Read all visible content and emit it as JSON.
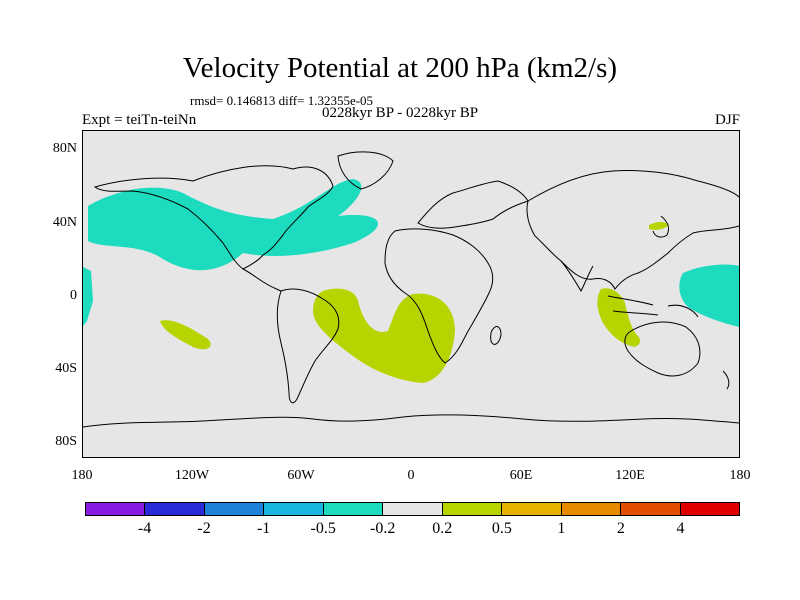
{
  "title": "Velocity Potential at 200 hPa (km2/s)",
  "stats": "rmsd= 0.146813 diff= 1.32355e-05",
  "expt": "Expt = teiTn-teiNn",
  "period": "0228kyr BP - 0228kyr BP",
  "season": "DJF",
  "axes": {
    "y_labels": [
      "80N",
      "40N",
      "0",
      "40S",
      "80S"
    ],
    "x_labels": [
      "180",
      "120W",
      "60W",
      "0",
      "60E",
      "120E",
      "180"
    ]
  },
  "colorbar": {
    "colors": [
      "#8a1be0",
      "#2a2ad8",
      "#1e82d9",
      "#19b7e0",
      "#1ddbbf",
      "#e6e6e6",
      "#b8d400",
      "#e6b100",
      "#e68a00",
      "#e24e00",
      "#e00000"
    ],
    "labels": [
      "-4",
      "-2",
      "-1",
      "-0.5",
      "-0.2",
      "0.2",
      "0.5",
      "1",
      "2",
      "4"
    ]
  },
  "map": {
    "background": "#e6e6e6",
    "negative_fill": "#1ddbbf",
    "positive_fill": "#b8d400"
  }
}
